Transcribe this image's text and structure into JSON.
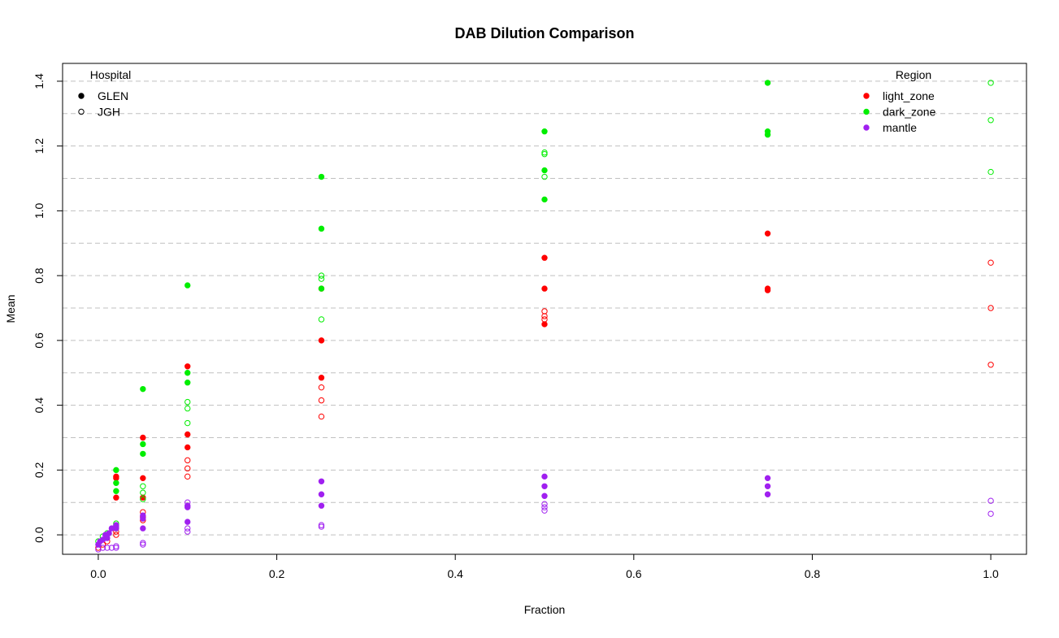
{
  "chart_data": {
    "type": "scatter",
    "title": "DAB Dilution Comparison",
    "xlabel": "Fraction",
    "ylabel": "Mean",
    "xlim": [
      -0.04,
      1.04
    ],
    "ylim": [
      -0.06,
      1.455
    ],
    "x_ticks": [
      0.0,
      0.2,
      0.4,
      0.6,
      0.8,
      1.0
    ],
    "x_tick_labels": [
      "0.0",
      "0.2",
      "0.4",
      "0.6",
      "0.8",
      "1.0"
    ],
    "y_ticks": [
      0.0,
      0.2,
      0.4,
      0.6,
      0.8,
      1.0,
      1.2,
      1.4
    ],
    "y_tick_labels": [
      "0.0",
      "0.2",
      "0.4",
      "0.6",
      "0.8",
      "1.0",
      "1.2",
      "1.4"
    ],
    "grid": "horizontal dashed every 0.1",
    "legends": [
      {
        "title": "Hospital",
        "placement": "top-left",
        "entries": [
          {
            "label": "GLEN",
            "marker": "filled",
            "color": "#000000"
          },
          {
            "label": "JGH",
            "marker": "open",
            "color": "#000000"
          }
        ]
      },
      {
        "title": "Region",
        "placement": "top-right",
        "entries": [
          {
            "label": "light_zone",
            "marker": "filled",
            "color": "#ff0000"
          },
          {
            "label": "dark_zone",
            "marker": "filled",
            "color": "#00ee00"
          },
          {
            "label": "mantle",
            "marker": "filled",
            "color": "#a020f0"
          }
        ]
      }
    ],
    "colors": {
      "light_zone": "#ff0000",
      "dark_zone": "#00ee00",
      "mantle": "#a020f0"
    },
    "series": [
      {
        "region": "light_zone",
        "hospital": "GLEN",
        "marker": "filled",
        "points": [
          [
            0.02,
            0.115
          ],
          [
            0.02,
            0.175
          ],
          [
            0.02,
            0.18
          ],
          [
            0.05,
            0.115
          ],
          [
            0.05,
            0.175
          ],
          [
            0.05,
            0.3
          ],
          [
            0.1,
            0.27
          ],
          [
            0.1,
            0.31
          ],
          [
            0.1,
            0.52
          ],
          [
            0.25,
            0.485
          ],
          [
            0.25,
            0.6
          ],
          [
            0.25,
            0.76
          ],
          [
            0.5,
            0.65
          ],
          [
            0.5,
            0.76
          ],
          [
            0.5,
            0.855
          ],
          [
            0.75,
            0.755
          ],
          [
            0.75,
            0.76
          ],
          [
            0.75,
            0.93
          ]
        ]
      },
      {
        "region": "light_zone",
        "hospital": "JGH",
        "marker": "open",
        "points": [
          [
            0.0,
            -0.04
          ],
          [
            0.005,
            -0.03
          ],
          [
            0.01,
            -0.02
          ],
          [
            0.02,
            0.0
          ],
          [
            0.02,
            0.01
          ],
          [
            0.02,
            0.025
          ],
          [
            0.05,
            0.045
          ],
          [
            0.05,
            0.055
          ],
          [
            0.05,
            0.07
          ],
          [
            0.1,
            0.18
          ],
          [
            0.1,
            0.205
          ],
          [
            0.1,
            0.23
          ],
          [
            0.25,
            0.365
          ],
          [
            0.25,
            0.415
          ],
          [
            0.25,
            0.455
          ],
          [
            0.5,
            0.665
          ],
          [
            0.5,
            0.675
          ],
          [
            0.5,
            0.69
          ],
          [
            1.0,
            0.525
          ],
          [
            1.0,
            0.7
          ],
          [
            1.0,
            0.84
          ]
        ]
      },
      {
        "region": "dark_zone",
        "hospital": "GLEN",
        "marker": "filled",
        "points": [
          [
            0.02,
            0.135
          ],
          [
            0.02,
            0.16
          ],
          [
            0.02,
            0.2
          ],
          [
            0.05,
            0.25
          ],
          [
            0.05,
            0.28
          ],
          [
            0.05,
            0.45
          ],
          [
            0.1,
            0.47
          ],
          [
            0.1,
            0.5
          ],
          [
            0.1,
            0.77
          ],
          [
            0.25,
            0.76
          ],
          [
            0.25,
            0.945
          ],
          [
            0.25,
            1.105
          ],
          [
            0.5,
            1.035
          ],
          [
            0.5,
            1.125
          ],
          [
            0.5,
            1.245
          ],
          [
            0.75,
            1.235
          ],
          [
            0.75,
            1.245
          ],
          [
            0.75,
            1.395
          ]
        ]
      },
      {
        "region": "dark_zone",
        "hospital": "JGH",
        "marker": "open",
        "points": [
          [
            0.0,
            -0.02
          ],
          [
            0.005,
            -0.005
          ],
          [
            0.01,
            0.005
          ],
          [
            0.02,
            0.02
          ],
          [
            0.02,
            0.03
          ],
          [
            0.02,
            0.035
          ],
          [
            0.05,
            0.11
          ],
          [
            0.05,
            0.13
          ],
          [
            0.05,
            0.15
          ],
          [
            0.1,
            0.345
          ],
          [
            0.1,
            0.39
          ],
          [
            0.1,
            0.41
          ],
          [
            0.25,
            0.665
          ],
          [
            0.25,
            0.79
          ],
          [
            0.25,
            0.8
          ],
          [
            0.5,
            1.105
          ],
          [
            0.5,
            1.175
          ],
          [
            0.5,
            1.18
          ],
          [
            1.0,
            1.12
          ],
          [
            1.0,
            1.28
          ],
          [
            1.0,
            1.395
          ]
        ]
      },
      {
        "region": "mantle",
        "hospital": "GLEN",
        "marker": "filled",
        "points": [
          [
            0.0,
            -0.03
          ],
          [
            0.002,
            -0.02
          ],
          [
            0.005,
            -0.015
          ],
          [
            0.008,
            0.0
          ],
          [
            0.01,
            -0.01
          ],
          [
            0.012,
            0.005
          ],
          [
            0.015,
            0.02
          ],
          [
            0.02,
            0.02
          ],
          [
            0.02,
            0.025
          ],
          [
            0.02,
            0.03
          ],
          [
            0.05,
            0.02
          ],
          [
            0.05,
            0.05
          ],
          [
            0.05,
            0.06
          ],
          [
            0.1,
            0.04
          ],
          [
            0.1,
            0.085
          ],
          [
            0.1,
            0.09
          ],
          [
            0.25,
            0.09
          ],
          [
            0.25,
            0.125
          ],
          [
            0.25,
            0.165
          ],
          [
            0.5,
            0.12
          ],
          [
            0.5,
            0.15
          ],
          [
            0.5,
            0.18
          ],
          [
            0.75,
            0.125
          ],
          [
            0.75,
            0.15
          ],
          [
            0.75,
            0.175
          ]
        ]
      },
      {
        "region": "mantle",
        "hospital": "JGH",
        "marker": "open",
        "points": [
          [
            0.0,
            -0.045
          ],
          [
            0.005,
            -0.04
          ],
          [
            0.01,
            -0.04
          ],
          [
            0.015,
            -0.04
          ],
          [
            0.02,
            -0.04
          ],
          [
            0.02,
            -0.035
          ],
          [
            0.05,
            -0.03
          ],
          [
            0.05,
            -0.025
          ],
          [
            0.1,
            0.01
          ],
          [
            0.1,
            0.02
          ],
          [
            0.1,
            0.1
          ],
          [
            0.25,
            0.025
          ],
          [
            0.25,
            0.03
          ],
          [
            0.5,
            0.075
          ],
          [
            0.5,
            0.085
          ],
          [
            0.5,
            0.095
          ],
          [
            1.0,
            0.065
          ],
          [
            1.0,
            0.105
          ]
        ]
      }
    ]
  }
}
